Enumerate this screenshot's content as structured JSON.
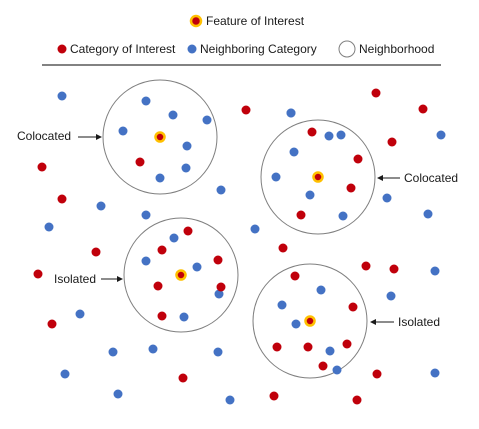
{
  "legend": {
    "feature": "Feature of Interest",
    "category": "Category of Interest",
    "neighbor": "Neighboring Category",
    "neighborhood": "Neighborhood"
  },
  "labels": {
    "colocated_left": "Colocated",
    "colocated_right": "Colocated",
    "isolated_left": "Isolated",
    "isolated_right": "Isolated"
  },
  "colors": {
    "category": "#c0000b",
    "neighbor": "#4472c4",
    "feature_fill": "#c0000b",
    "feature_ring": "#ffc000",
    "circle_stroke": "#7f7f7f",
    "divider": "#595959"
  }
}
